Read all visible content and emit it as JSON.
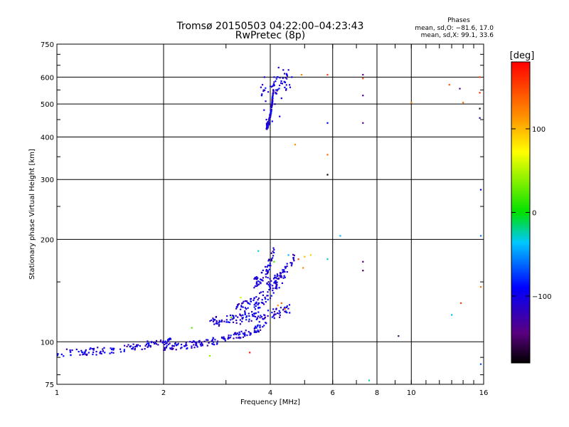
{
  "chart_data": {
    "type": "scatter",
    "title": "Tromsø 20150503 04:22:00–04:23:43",
    "subtitle": "RwPretec (8p)",
    "xlabel": "Frequency [MHz]",
    "ylabel": "Stationary phase Virtual Height [km]",
    "x_scale": "log",
    "y_scale": "log",
    "xlim": [
      1,
      16
    ],
    "ylim": [
      75,
      750
    ],
    "x_ticks": [
      1,
      2,
      4,
      6,
      8,
      10,
      16
    ],
    "x_tick_labels": [
      "1",
      "2",
      "4",
      "6",
      "8",
      "10",
      "16"
    ],
    "y_ticks": [
      75,
      100,
      200,
      300,
      400,
      500,
      600,
      750
    ],
    "y_tick_labels": [
      "75",
      "100",
      "200",
      "300",
      "400",
      "500",
      "600",
      "750"
    ],
    "grid": true,
    "stats": {
      "heading": "Phases",
      "line_o": "mean, sd,O: −81.6, 17.0",
      "line_x": "mean, sd,X: 99.1, 33.6"
    },
    "colorbar": {
      "label": "[deg]",
      "range": [
        -180,
        180
      ],
      "ticks": [
        100,
        0,
        -100
      ],
      "tick_labels": [
        "100",
        "0",
        "−100"
      ]
    },
    "series": [
      {
        "color_value": -105,
        "generated_traces": [
          {
            "x0": 1.0,
            "x1": 2.1,
            "y0": 93,
            "y1": 101,
            "n": 120,
            "yjitter": 0.025
          },
          {
            "x0": 2.0,
            "x1": 3.9,
            "y0": 97,
            "y1": 112,
            "n": 150,
            "yjitter": 0.025
          },
          {
            "x0": 2.7,
            "x1": 4.6,
            "y0": 115,
            "y1": 125,
            "n": 110,
            "yjitter": 0.035
          },
          {
            "x0": 3.2,
            "x1": 4.4,
            "y0": 125,
            "y1": 160,
            "n": 110,
            "yjitter": 0.05
          },
          {
            "x0": 3.6,
            "x1": 4.1,
            "y0": 150,
            "y1": 185,
            "n": 60,
            "yjitter": 0.04
          },
          {
            "x0": 3.9,
            "x1": 4.7,
            "y0": 150,
            "y1": 180,
            "n": 50,
            "yjitter": 0.03
          },
          {
            "x0": 3.75,
            "x1": 4.55,
            "y0": 560,
            "y1": 590,
            "n": 40,
            "yjitter": 0.06
          },
          {
            "x0": 3.9,
            "x1": 4.1,
            "y0": 430,
            "y1": 580,
            "n": 120,
            "yjitter": 0.02
          }
        ],
        "points": [
          {
            "x": 3.85,
            "y": 600,
            "c": -100
          },
          {
            "x": 3.8,
            "y": 570,
            "c": -110
          },
          {
            "x": 3.78,
            "y": 530,
            "c": -95
          },
          {
            "x": 3.84,
            "y": 480,
            "c": -100
          },
          {
            "x": 3.9,
            "y": 450,
            "c": -90
          },
          {
            "x": 3.95,
            "y": 440,
            "c": -100
          },
          {
            "x": 4.05,
            "y": 445,
            "c": -95
          },
          {
            "x": 4.12,
            "y": 500,
            "c": -110
          },
          {
            "x": 4.15,
            "y": 550,
            "c": -85
          },
          {
            "x": 4.2,
            "y": 600,
            "c": -100
          },
          {
            "x": 4.22,
            "y": 640,
            "c": -105
          },
          {
            "x": 4.35,
            "y": 630,
            "c": -100
          },
          {
            "x": 4.45,
            "y": 610,
            "c": -90
          },
          {
            "x": 4.5,
            "y": 630,
            "c": -110
          },
          {
            "x": 4.55,
            "y": 560,
            "c": -100
          },
          {
            "x": 4.3,
            "y": 520,
            "c": -95
          },
          {
            "x": 4.4,
            "y": 580,
            "c": -88
          },
          {
            "x": 4.0,
            "y": 470,
            "c": -80
          },
          {
            "x": 4.1,
            "y": 600,
            "c": -105
          },
          {
            "x": 4.25,
            "y": 460,
            "c": -100
          },
          {
            "x": 3.88,
            "y": 510,
            "c": -112
          },
          {
            "x": 4.6,
            "y": 600,
            "c": -95
          },
          {
            "x": 4.9,
            "y": 610,
            "c": 120
          },
          {
            "x": 5.8,
            "y": 610,
            "c": 150
          },
          {
            "x": 7.3,
            "y": 610,
            "c": -140
          },
          {
            "x": 7.3,
            "y": 595,
            "c": 150
          },
          {
            "x": 7.3,
            "y": 530,
            "c": -130
          },
          {
            "x": 7.3,
            "y": 440,
            "c": -140
          },
          {
            "x": 5.8,
            "y": 440,
            "c": -90
          },
          {
            "x": 4.7,
            "y": 380,
            "c": 115
          },
          {
            "x": 5.8,
            "y": 355,
            "c": 130
          },
          {
            "x": 5.8,
            "y": 310,
            "c": -175
          },
          {
            "x": 10.0,
            "y": 505,
            "c": 120
          },
          {
            "x": 12.8,
            "y": 570,
            "c": 140
          },
          {
            "x": 13.7,
            "y": 555,
            "c": -140
          },
          {
            "x": 14.0,
            "y": 505,
            "c": 130
          },
          {
            "x": 15.6,
            "y": 600,
            "c": 150
          },
          {
            "x": 15.6,
            "y": 540,
            "c": 160
          },
          {
            "x": 15.6,
            "y": 485,
            "c": -175
          },
          {
            "x": 15.6,
            "y": 455,
            "c": -120
          },
          {
            "x": 15.7,
            "y": 280,
            "c": -90
          },
          {
            "x": 15.7,
            "y": 205,
            "c": -60
          },
          {
            "x": 6.3,
            "y": 205,
            "c": -40
          },
          {
            "x": 5.8,
            "y": 175,
            "c": -30
          },
          {
            "x": 7.3,
            "y": 172,
            "c": -150
          },
          {
            "x": 7.3,
            "y": 162,
            "c": -160
          },
          {
            "x": 4.8,
            "y": 175,
            "c": 150
          },
          {
            "x": 5.0,
            "y": 178,
            "c": 100
          },
          {
            "x": 4.95,
            "y": 165,
            "c": 120
          },
          {
            "x": 5.2,
            "y": 180,
            "c": 90
          },
          {
            "x": 4.5,
            "y": 180,
            "c": -40
          },
          {
            "x": 4.3,
            "y": 130,
            "c": 140
          },
          {
            "x": 4.4,
            "y": 125,
            "c": 130
          },
          {
            "x": 4.2,
            "y": 128,
            "c": 110
          },
          {
            "x": 3.5,
            "y": 93,
            "c": 170
          },
          {
            "x": 2.7,
            "y": 91,
            "c": 40
          },
          {
            "x": 3.1,
            "y": 118,
            "c": 30
          },
          {
            "x": 2.4,
            "y": 110,
            "c": 25
          },
          {
            "x": 3.3,
            "y": 135,
            "c": 60
          },
          {
            "x": 3.7,
            "y": 185,
            "c": -30
          },
          {
            "x": 4.1,
            "y": 172,
            "c": 20
          },
          {
            "x": 9.2,
            "y": 104,
            "c": -150
          },
          {
            "x": 7.6,
            "y": 77,
            "c": -20
          },
          {
            "x": 15.7,
            "y": 86,
            "c": -70
          },
          {
            "x": 13.0,
            "y": 120,
            "c": -40
          },
          {
            "x": 13.8,
            "y": 130,
            "c": 150
          },
          {
            "x": 15.7,
            "y": 145,
            "c": 130
          }
        ]
      }
    ]
  }
}
